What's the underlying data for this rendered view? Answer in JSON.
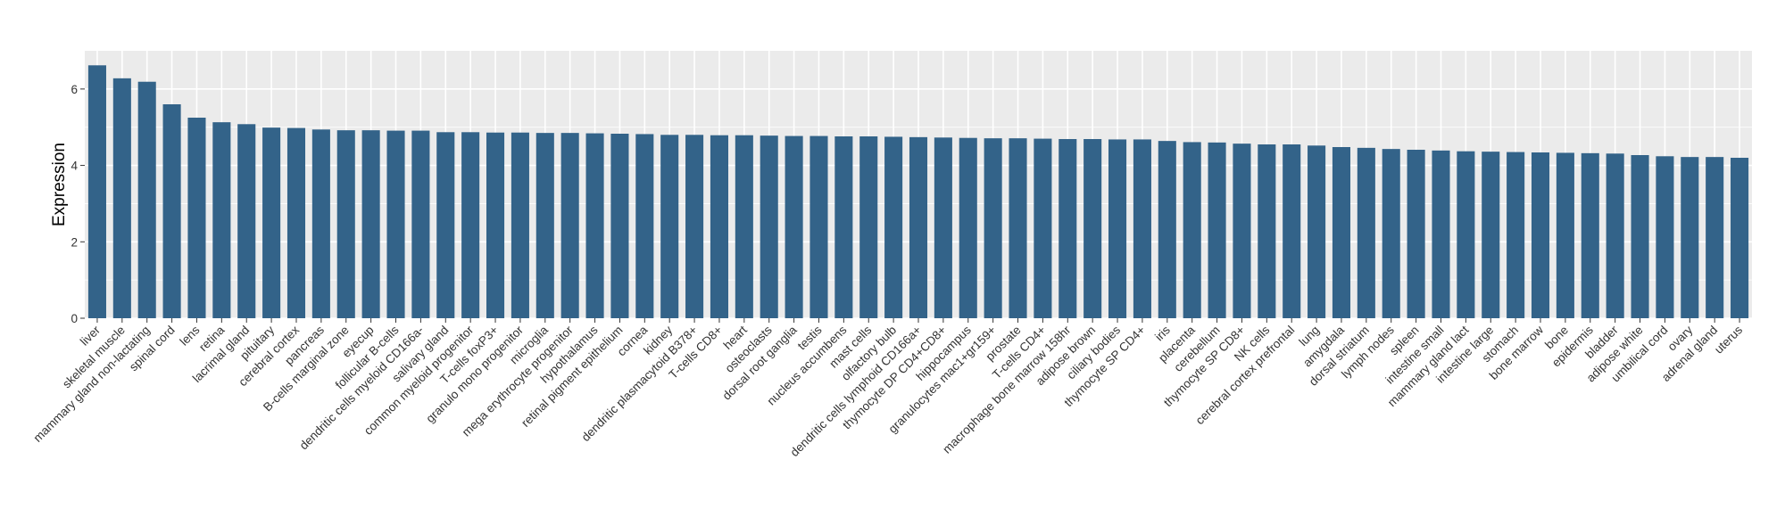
{
  "chart_data": {
    "type": "bar",
    "title": "",
    "xlabel": "",
    "ylabel": "Expression",
    "ylim": [
      0,
      7
    ],
    "yticks": [
      0,
      2,
      4,
      6
    ],
    "grid": true,
    "legend": "none",
    "bar_color": "#336389",
    "panel_color": "#EBEBEB",
    "categories": [
      "liver",
      "skeletal muscle",
      "mammary gland non-lactating",
      "spinal cord",
      "lens",
      "retina",
      "lacrimal gland",
      "pituitary",
      "cerebral cortex",
      "pancreas",
      "B-cells marginal zone",
      "eyecup",
      "follicular B-cells",
      "dendritic cells myeloid CD166a-",
      "salivary gland",
      "common myeloid progenitor",
      "T-cells foxP3+",
      "granulo mono progenitor",
      "microglia",
      "mega erythrocyte progenitor",
      "hypothalamus",
      "retinal pigment epithelium",
      "cornea",
      "kidney",
      "dendritic plasmacytoid B378+",
      "T-cells CD8+",
      "heart",
      "osteoclasts",
      "dorsal root ganglia",
      "testis",
      "nucleus accumbens",
      "mast cells",
      "olfactory bulb",
      "dendritic cells lymphoid CD166a+",
      "thymocyte DP CD4+CD8+",
      "hippocampus",
      "granulocytes mac1+gr159+",
      "prostate",
      "T-cells CD4+",
      "macrophage bone marrow 158hr",
      "adipose brown",
      "ciliary bodies",
      "thymocyte SP CD4+",
      "iris",
      "placenta",
      "cerebellum",
      "thymocyte SP CD8+",
      "NK cells",
      "cerebral cortex prefrontal",
      "lung",
      "amygdala",
      "dorsal striatum",
      "lymph nodes",
      "spleen",
      "intestine small",
      "mammary gland  lact",
      "intestine large",
      "stomach",
      "bone marrow",
      "bone",
      "epidermis",
      "bladder",
      "adipose white",
      "umbilical cord",
      "ovary",
      "adrenal gland",
      "uterus"
    ],
    "values": [
      6.62,
      6.28,
      6.19,
      5.6,
      5.25,
      5.13,
      5.08,
      4.99,
      4.98,
      4.94,
      4.92,
      4.92,
      4.91,
      4.91,
      4.87,
      4.87,
      4.86,
      4.86,
      4.85,
      4.85,
      4.84,
      4.83,
      4.82,
      4.8,
      4.8,
      4.79,
      4.79,
      4.78,
      4.77,
      4.77,
      4.76,
      4.76,
      4.75,
      4.74,
      4.73,
      4.72,
      4.71,
      4.71,
      4.7,
      4.69,
      4.69,
      4.68,
      4.68,
      4.64,
      4.61,
      4.6,
      4.57,
      4.55,
      4.55,
      4.52,
      4.48,
      4.46,
      4.43,
      4.41,
      4.39,
      4.37,
      4.36,
      4.35,
      4.34,
      4.33,
      4.32,
      4.31,
      4.27,
      4.24,
      4.22,
      4.22,
      4.2
    ]
  }
}
